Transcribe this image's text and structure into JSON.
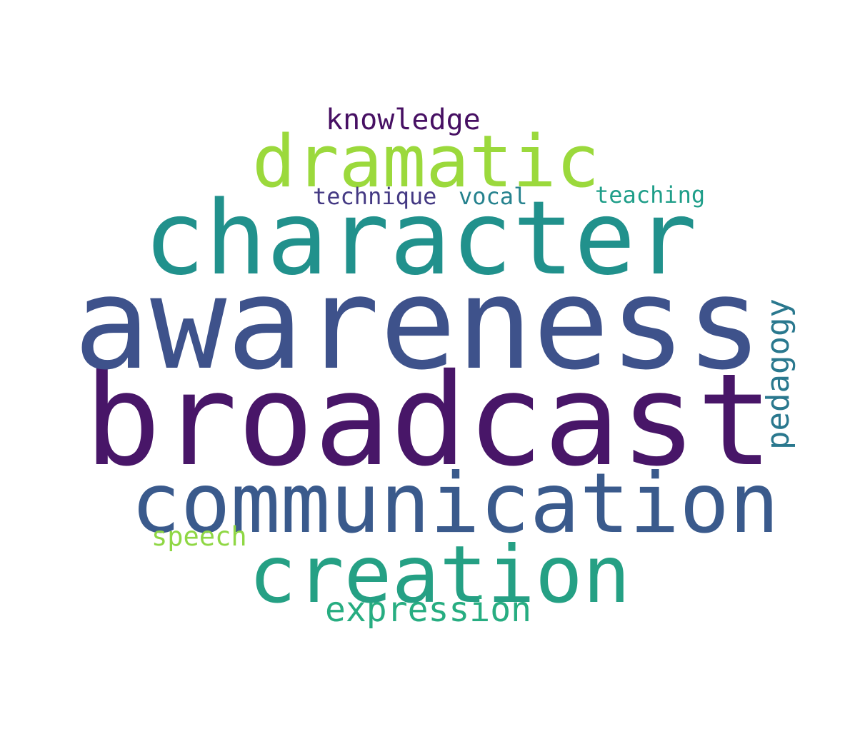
{
  "words": [
    {
      "key": "broadcast",
      "text": "broadcast",
      "color": "#481668"
    },
    {
      "key": "awareness",
      "text": "awareness",
      "color": "#3e528b"
    },
    {
      "key": "character",
      "text": "character",
      "color": "#21918c"
    },
    {
      "key": "communication",
      "text": "communication",
      "color": "#3a5a8c"
    },
    {
      "key": "creation",
      "text": "creation",
      "color": "#25a084"
    },
    {
      "key": "dramatic",
      "text": "dramatic",
      "color": "#9bd93c"
    },
    {
      "key": "expression",
      "text": "expression",
      "color": "#27ad81"
    },
    {
      "key": "pedagogy",
      "text": "pedagogy",
      "color": "#2a788e"
    },
    {
      "key": "knowledge",
      "text": "knowledge",
      "color": "#471063"
    },
    {
      "key": "speech",
      "text": "speech",
      "color": "#8fd744"
    },
    {
      "key": "technique",
      "text": "technique",
      "color": "#443983"
    },
    {
      "key": "vocal",
      "text": "vocal",
      "color": "#26828e"
    },
    {
      "key": "teaching",
      "text": "teaching",
      "color": "#1f9e89"
    }
  ]
}
